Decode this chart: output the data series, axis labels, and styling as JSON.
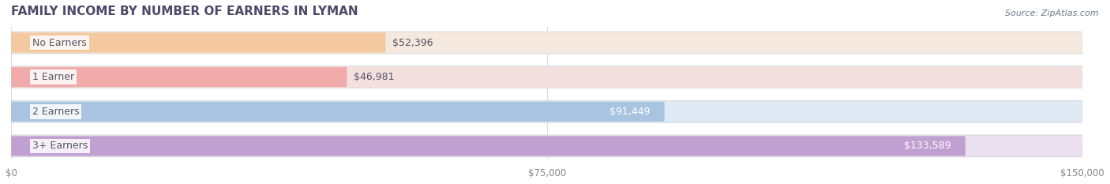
{
  "title": "FAMILY INCOME BY NUMBER OF EARNERS IN LYMAN",
  "source": "Source: ZipAtlas.com",
  "categories": [
    "No Earners",
    "1 Earner",
    "2 Earners",
    "3+ Earners"
  ],
  "values": [
    52396,
    46981,
    91449,
    133589
  ],
  "bar_colors": [
    "#f5c9a0",
    "#f0aaaa",
    "#a8c4e0",
    "#c0a0d0"
  ],
  "bar_bg_colors": [
    "#f5e8de",
    "#f5e0e0",
    "#e0eaf5",
    "#ebe0f0"
  ],
  "label_colors": [
    "#a08060",
    "#c07070",
    "#ffffff",
    "#ffffff"
  ],
  "xlim": [
    0,
    150000
  ],
  "xticks": [
    0,
    75000,
    150000
  ],
  "xtick_labels": [
    "$0",
    "$75,000",
    "$150,000"
  ],
  "bar_height": 0.62,
  "fig_width": 14.06,
  "fig_height": 2.33,
  "title_fontsize": 11,
  "label_fontsize": 9,
  "tick_fontsize": 8.5,
  "source_fontsize": 8,
  "title_color": "#4a4a6a",
  "source_color": "#6a7a8a",
  "tick_color": "#888888",
  "bg_color": "#ffffff",
  "grid_color": "#dddddd"
}
